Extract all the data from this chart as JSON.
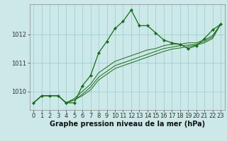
{
  "background_color": "#cce8e8",
  "line_color": "#1a6b1a",
  "grid_color": "#99cccc",
  "xlabel": "Graphe pression niveau de la mer (hPa)",
  "xlabel_fontsize": 7,
  "tick_fontsize": 6,
  "ylim": [
    1009.35,
    1013.05
  ],
  "xlim": [
    -0.5,
    23.5
  ],
  "yticks": [
    1010,
    1011,
    1012
  ],
  "xticks": [
    0,
    1,
    2,
    3,
    4,
    5,
    6,
    7,
    8,
    9,
    10,
    11,
    12,
    13,
    14,
    15,
    16,
    17,
    18,
    19,
    20,
    21,
    22,
    23
  ],
  "series": [
    [
      1009.6,
      1009.85,
      1009.85,
      1009.85,
      1009.6,
      1009.6,
      1010.2,
      1010.55,
      1011.35,
      1011.75,
      1012.2,
      1012.45,
      1012.85,
      1012.3,
      1012.3,
      1012.05,
      1011.8,
      1011.7,
      1011.65,
      1011.5,
      1011.6,
      1011.85,
      1012.15,
      1012.35
    ],
    [
      1009.6,
      1009.85,
      1009.85,
      1009.85,
      1009.6,
      1009.75,
      1010.0,
      1010.25,
      1010.65,
      1010.85,
      1011.05,
      1011.15,
      1011.25,
      1011.35,
      1011.45,
      1011.5,
      1011.6,
      1011.65,
      1011.65,
      1011.7,
      1011.7,
      1011.8,
      1011.95,
      1012.35
    ],
    [
      1009.6,
      1009.85,
      1009.85,
      1009.85,
      1009.6,
      1009.7,
      1009.9,
      1010.15,
      1010.5,
      1010.7,
      1010.9,
      1011.0,
      1011.1,
      1011.2,
      1011.3,
      1011.4,
      1011.5,
      1011.55,
      1011.6,
      1011.62,
      1011.65,
      1011.75,
      1011.9,
      1012.35
    ],
    [
      1009.6,
      1009.85,
      1009.85,
      1009.85,
      1009.6,
      1009.7,
      1009.85,
      1010.05,
      1010.4,
      1010.6,
      1010.8,
      1010.9,
      1011.0,
      1011.1,
      1011.2,
      1011.3,
      1011.4,
      1011.48,
      1011.52,
      1011.57,
      1011.62,
      1011.7,
      1011.85,
      1012.35
    ]
  ]
}
